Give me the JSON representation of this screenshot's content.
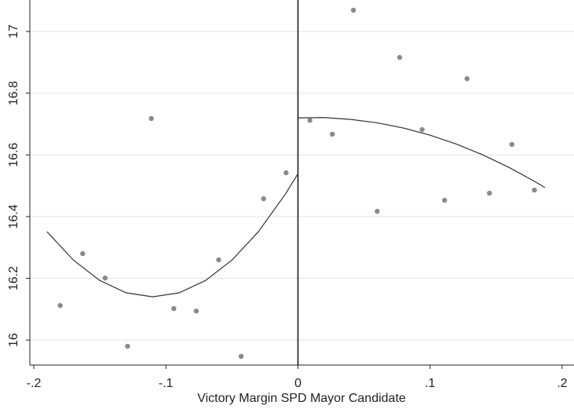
{
  "chart_data": {
    "type": "scatter",
    "x_label": "Victory Margin SPD Mayor Candidate",
    "xlim": [
      -0.203,
      0.209
    ],
    "ylim": [
      15.919,
      17.102
    ],
    "xticks": [
      {
        "value": -0.2,
        "label": "-.2"
      },
      {
        "value": -0.1,
        "label": "-.1"
      },
      0,
      {
        "value": 0.1,
        "label": ".1"
      },
      {
        "value": 0.2,
        "label": ".2"
      }
    ],
    "yticks": [
      16,
      16.2,
      16.4,
      16.6,
      16.8,
      17
    ],
    "grid": true,
    "cutoff": 0,
    "points": {
      "color": "#8a8a8a",
      "x": [
        -0.18,
        -0.163,
        -0.146,
        -0.129,
        -0.111,
        -0.094,
        -0.077,
        -0.06,
        -0.043,
        -0.026,
        -0.009,
        0.009,
        0.026,
        0.042,
        0.06,
        0.077,
        0.094,
        0.111,
        0.128,
        0.145,
        0.162,
        0.179
      ],
      "y": [
        16.112,
        16.28,
        16.201,
        15.98,
        16.718,
        16.102,
        16.094,
        16.26,
        15.947,
        16.458,
        16.542,
        16.712,
        16.667,
        17.069,
        16.417,
        16.916,
        16.682,
        16.453,
        16.847,
        16.476,
        16.634,
        16.486
      ]
    },
    "fits": [
      {
        "color": "#333333",
        "x": [
          -0.19,
          -0.17,
          -0.15,
          -0.13,
          -0.11,
          -0.09,
          -0.07,
          -0.05,
          -0.03,
          -0.01,
          0
        ],
        "y": [
          16.351,
          16.259,
          16.193,
          16.153,
          16.14,
          16.153,
          16.193,
          16.259,
          16.351,
          16.47,
          16.539
        ]
      },
      {
        "color": "#333333",
        "x": [
          0,
          0.02,
          0.04,
          0.06,
          0.08,
          0.1,
          0.12,
          0.14,
          0.16,
          0.18,
          0.187
        ],
        "y": [
          16.72,
          16.721,
          16.715,
          16.704,
          16.687,
          16.664,
          16.635,
          16.6,
          16.559,
          16.512,
          16.494
        ]
      }
    ]
  }
}
